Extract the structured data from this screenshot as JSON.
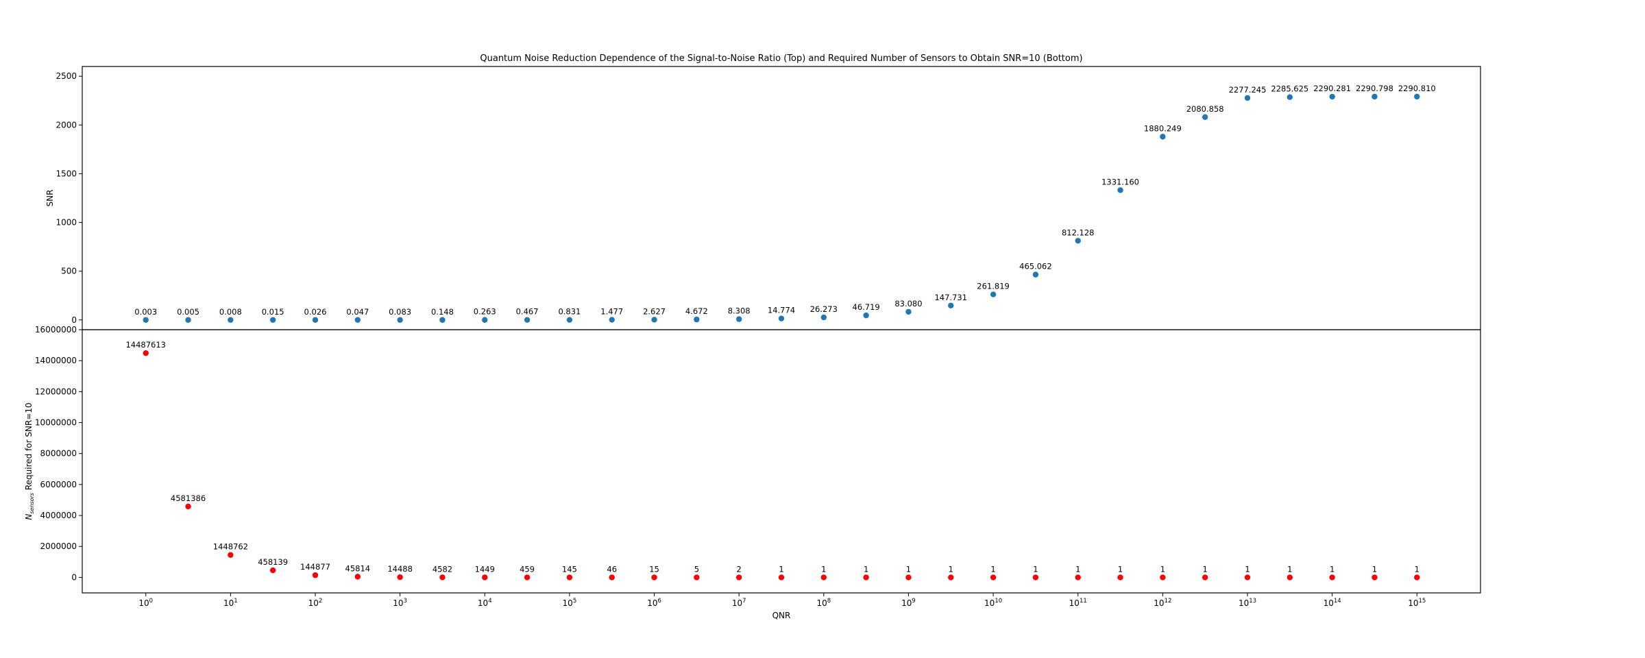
{
  "chart_data": [
    {
      "type": "scatter",
      "panel": "top",
      "title": "Quantum Noise Reduction Dependence of the Signal-to-Noise Ratio (Top) and Required Number of Sensors to Obtain SNR=10 (Bottom)",
      "ylabel": "SNR",
      "xscale": "log",
      "x_exponents": [
        0,
        0.5,
        1,
        1.5,
        2,
        2.5,
        3,
        3.5,
        4,
        4.5,
        5,
        5.5,
        6,
        6.5,
        7,
        7.5,
        8,
        8.5,
        9,
        9.5,
        10,
        10.5,
        11,
        11.5,
        12,
        12.5,
        13,
        13.5,
        14,
        14.5,
        15
      ],
      "values": [
        0.003,
        0.005,
        0.008,
        0.015,
        0.026,
        0.047,
        0.083,
        0.148,
        0.263,
        0.467,
        0.831,
        1.477,
        2.627,
        4.672,
        8.308,
        14.774,
        26.273,
        46.719,
        83.08,
        147.731,
        261.819,
        465.062,
        812.128,
        1331.16,
        1880.249,
        2080.858,
        2277.245,
        2285.625,
        2290.281,
        2290.798,
        2290.81
      ],
      "labels": [
        "0.003",
        "0.005",
        "0.008",
        "0.015",
        "0.026",
        "0.047",
        "0.083",
        "0.148",
        "0.263",
        "0.467",
        "0.831",
        "1.477",
        "2.627",
        "4.672",
        "8.308",
        "14.774",
        "26.273",
        "46.719",
        "83.080",
        "147.731",
        "261.819",
        "465.062",
        "812.128",
        "1331.160",
        "1880.249",
        "2080.858",
        "2277.245",
        "2285.625",
        "2290.281",
        "2290.798",
        "2290.810"
      ],
      "yticks": [
        "0",
        "500",
        "1000",
        "1500",
        "2000",
        "2500"
      ],
      "ytick_values": [
        0,
        500,
        1000,
        1500,
        2000,
        2500
      ],
      "ylim": [
        -100,
        2600
      ],
      "color": "#1f77b4",
      "grid": false
    },
    {
      "type": "scatter",
      "panel": "bottom",
      "xlabel": "QNR",
      "ylabel": "N_sensors Required for SNR=10",
      "ylabel_main": "N",
      "ylabel_sub": "sensors",
      "ylabel_rest": " Required for SNR=10",
      "xscale": "log",
      "x_exponents": [
        0,
        0.5,
        1,
        1.5,
        2,
        2.5,
        3,
        3.5,
        4,
        4.5,
        5,
        5.5,
        6,
        6.5,
        7,
        7.5,
        8,
        8.5,
        9,
        9.5,
        10,
        10.5,
        11,
        11.5,
        12,
        12.5,
        13,
        13.5,
        14,
        14.5,
        15
      ],
      "values": [
        14487613,
        4581386,
        1448762,
        458139,
        144877,
        45814,
        14488,
        4582,
        1449,
        459,
        145,
        46,
        15,
        5,
        2,
        1,
        1,
        1,
        1,
        1,
        1,
        1,
        1,
        1,
        1,
        1,
        1,
        1,
        1,
        1,
        1
      ],
      "labels": [
        "14487613",
        "4581386",
        "1448762",
        "458139",
        "144877",
        "45814",
        "14488",
        "4582",
        "1449",
        "459",
        "145",
        "46",
        "15",
        "5",
        "2",
        "1",
        "1",
        "1",
        "1",
        "1",
        "1",
        "1",
        "1",
        "1",
        "1",
        "1",
        "1",
        "1",
        "1",
        "1",
        "1"
      ],
      "yticks": [
        "0",
        "2000000",
        "4000000",
        "6000000",
        "8000000",
        "10000000",
        "12000000",
        "14000000",
        "16000000"
      ],
      "ytick_values": [
        0,
        2000000,
        4000000,
        6000000,
        8000000,
        10000000,
        12000000,
        14000000,
        16000000
      ],
      "ylim": [
        -1000000,
        16000000
      ],
      "xtick_base": "10",
      "xtick_exponents": [
        "0",
        "1",
        "2",
        "3",
        "4",
        "5",
        "6",
        "7",
        "8",
        "9",
        "10",
        "11",
        "12",
        "13",
        "14",
        "15"
      ],
      "color": "#ff0000",
      "ylabel_color": "#ff0000",
      "grid": false
    }
  ]
}
